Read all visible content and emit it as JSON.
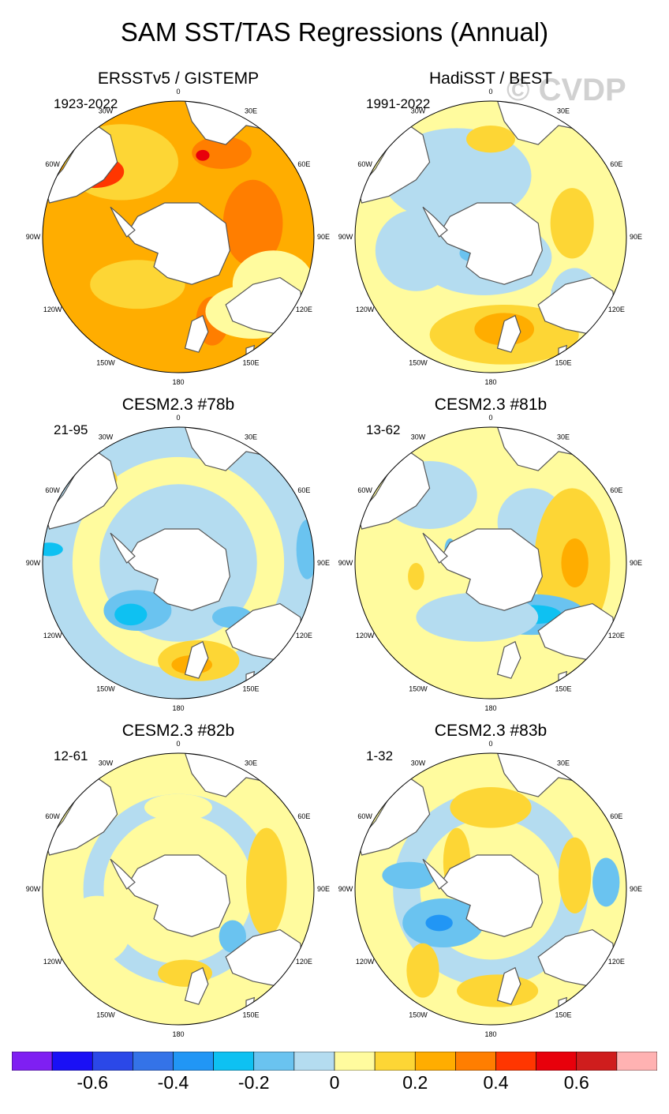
{
  "title": "SAM SST/TAS Regressions (Annual)",
  "watermark": "© CVDP",
  "panels": [
    {
      "title": "ERSSTv5 / GISTEMP",
      "period": "1923-2022",
      "field": "p0"
    },
    {
      "title": "HadiSST / BEST",
      "period": "1991-2022",
      "field": "p1"
    },
    {
      "title": "CESM2.3 #78b",
      "period": "21-95",
      "field": "p2"
    },
    {
      "title": "CESM2.3 #81b",
      "period": "13-62",
      "field": "p3"
    },
    {
      "title": "CESM2.3 #82b",
      "period": "12-61",
      "field": "p4"
    },
    {
      "title": "CESM2.3 #83b",
      "period": "1-32",
      "field": "p5"
    }
  ],
  "longitude_labels": [
    "0",
    "30E",
    "60E",
    "90E",
    "120E",
    "150E",
    "180",
    "150W",
    "120W",
    "90W",
    "60W",
    "30W"
  ],
  "colorbar": {
    "colors": [
      "#7f1ff2",
      "#1a10f5",
      "#2b48e8",
      "#3473e8",
      "#2196f5",
      "#0ec1f2",
      "#6ac3f0",
      "#b4dcf0",
      "#fffb9e",
      "#fdd635",
      "#ffad00",
      "#ff7e00",
      "#ff3600",
      "#e8000b",
      "#cf1d1d",
      "#ffb2b2"
    ],
    "tick_labels": [
      "-0.6",
      "-0.4",
      "-0.2",
      "0",
      "0.2",
      "0.4",
      "0.6"
    ]
  },
  "land_color": "#ffffff",
  "coast_color": "#555555"
}
